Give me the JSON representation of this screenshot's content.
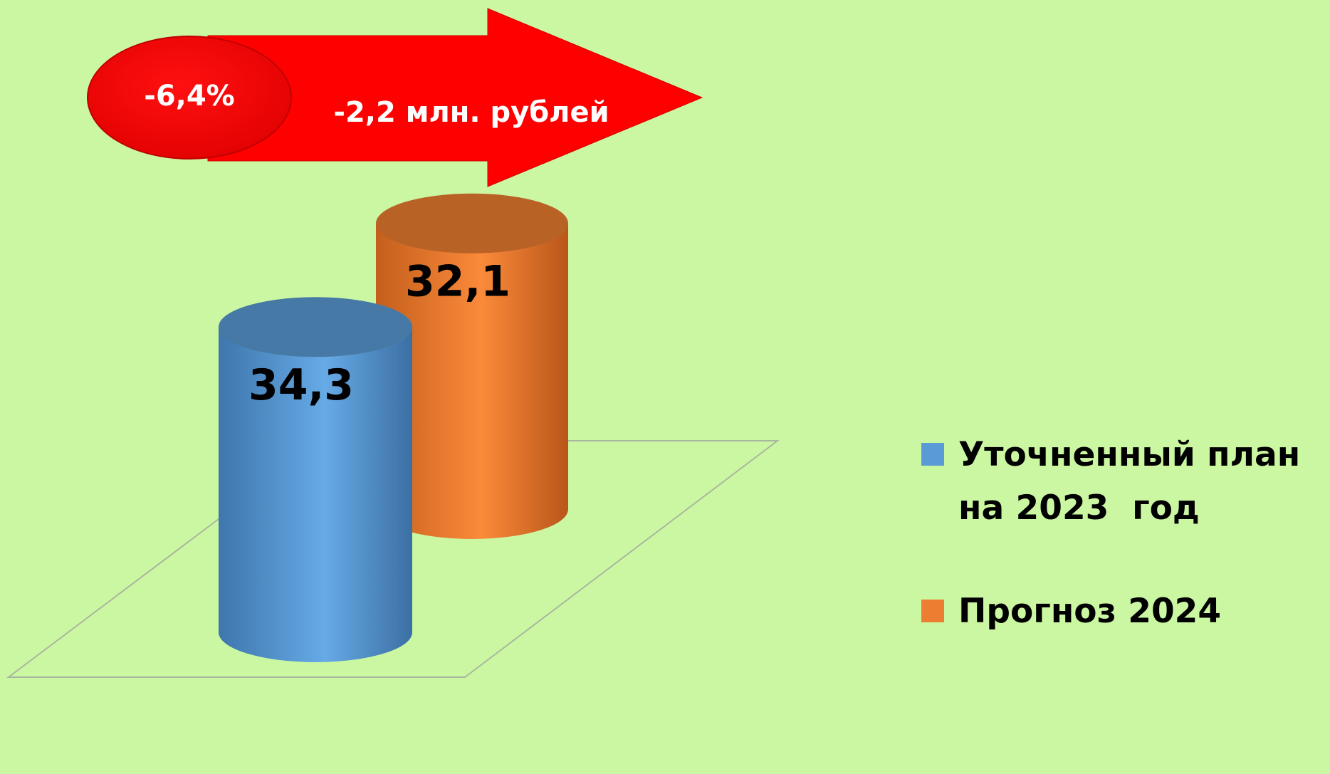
{
  "chart_data": {
    "type": "bar",
    "annotations": [
      "-6,4%",
      "-2,2 млн. рублей"
    ],
    "series": [
      {
        "name": "Уточненный план на 2023  год",
        "color": "#5b9bd5",
        "values": [
          34.3
        ],
        "value_labels": [
          "34,3"
        ]
      },
      {
        "name": "Прогноз 2024",
        "color": "#ed7d31",
        "values": [
          32.1
        ],
        "value_labels": [
          "32,1"
        ]
      }
    ],
    "legend": "right"
  }
}
